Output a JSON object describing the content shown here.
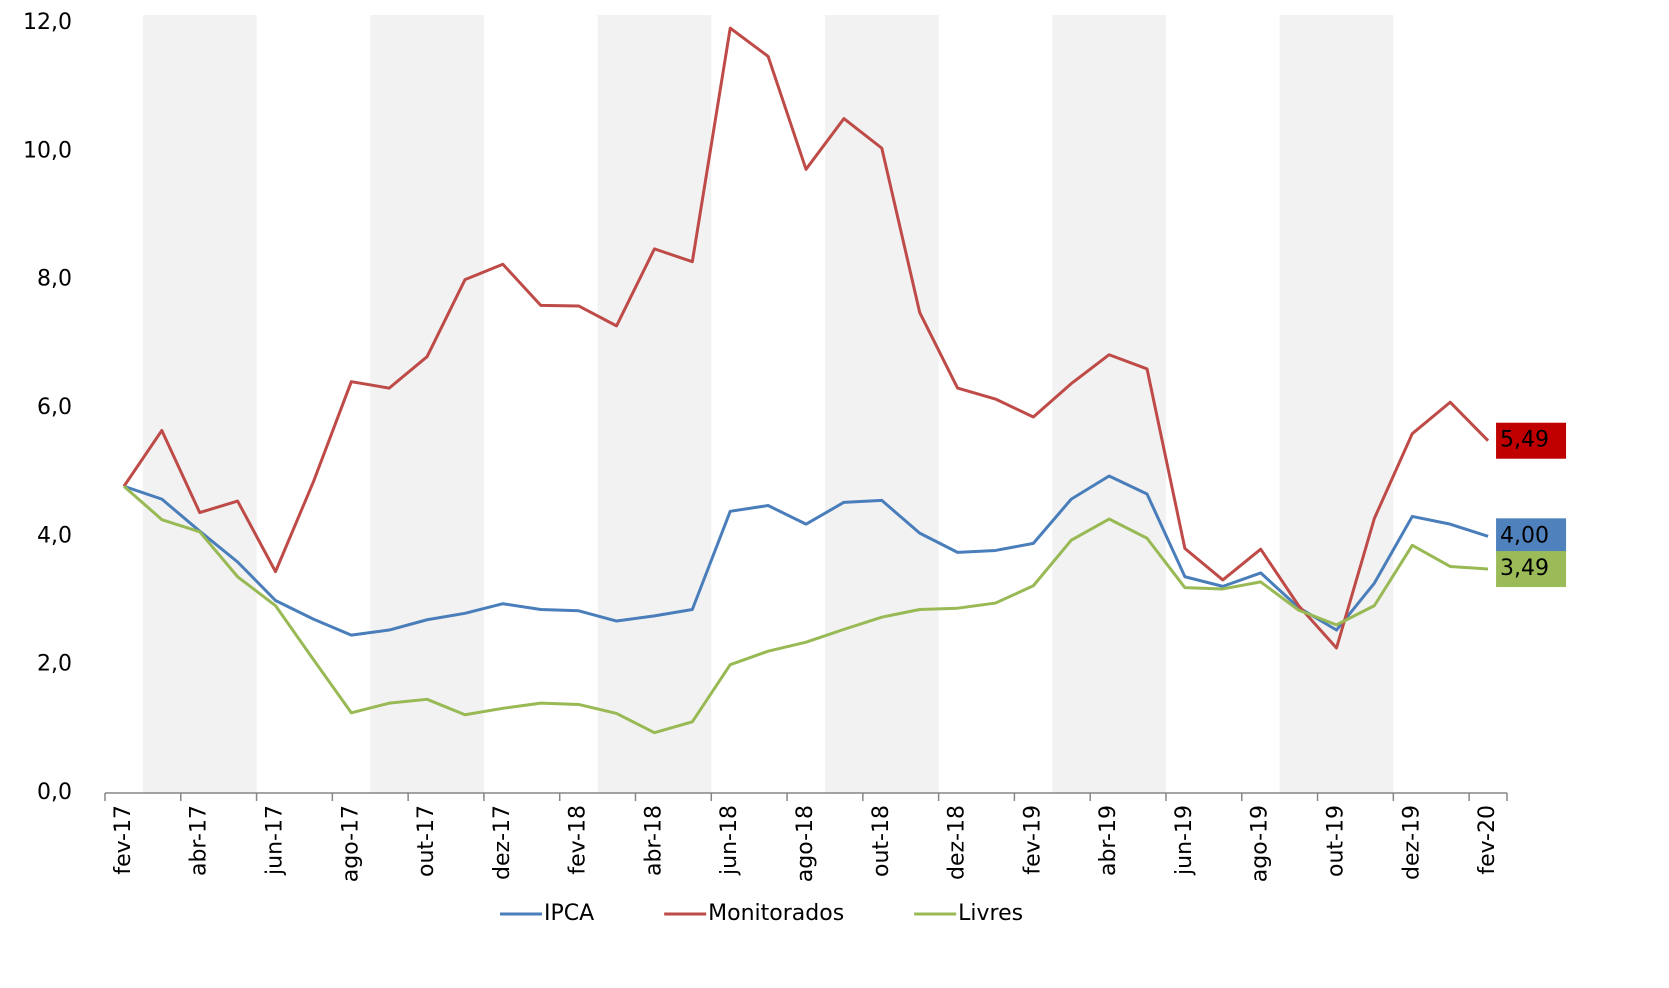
{
  "chart_data": {
    "type": "line",
    "categories": [
      "fev-17",
      null,
      "abr-17",
      null,
      "jun-17",
      null,
      "ago-17",
      null,
      "out-17",
      null,
      "dez-17",
      null,
      "fev-18",
      null,
      "abr-18",
      null,
      "jun-18",
      null,
      "ago-18",
      null,
      "out-18",
      null,
      "dez-18",
      null,
      "fev-19",
      null,
      "abr-19",
      null,
      "jun-19",
      null,
      "ago-19",
      null,
      "out-19",
      null,
      "dez-19",
      null,
      "fev-20"
    ],
    "series": [
      {
        "name": "IPCA",
        "color": "#4a7ebb",
        "label_color": "#4f81bd",
        "values": [
          4.78,
          4.58,
          4.08,
          3.6,
          3.0,
          2.71,
          2.46,
          2.54,
          2.7,
          2.8,
          2.95,
          2.86,
          2.84,
          2.68,
          2.76,
          2.86,
          4.39,
          4.48,
          4.19,
          4.53,
          4.56,
          4.05,
          3.75,
          3.78,
          3.89,
          4.58,
          4.94,
          4.66,
          3.37,
          3.22,
          3.43,
          2.89,
          2.54,
          3.27,
          4.31,
          4.19,
          4.0
        ],
        "value_labels": [
          null,
          null,
          null,
          null,
          null,
          null,
          null,
          null,
          null,
          null,
          null,
          null,
          null,
          null,
          null,
          null,
          null,
          null,
          null,
          null,
          null,
          null,
          null,
          null,
          null,
          null,
          null,
          null,
          null,
          null,
          null,
          null,
          null,
          null,
          null,
          null,
          "4,00"
        ]
      },
      {
        "name": "Monitorados",
        "color": "#be4b48",
        "label_color": "#c00000",
        "values": [
          4.78,
          5.65,
          4.37,
          4.55,
          3.45,
          4.85,
          6.41,
          6.31,
          6.8,
          8.0,
          8.24,
          7.6,
          7.59,
          7.28,
          8.48,
          8.28,
          11.92,
          11.48,
          9.72,
          10.51,
          10.05,
          7.49,
          6.31,
          6.14,
          5.86,
          6.38,
          6.83,
          6.61,
          3.81,
          3.32,
          3.8,
          2.92,
          2.26,
          4.28,
          5.6,
          6.09,
          5.49
        ],
        "value_labels": [
          null,
          null,
          null,
          null,
          null,
          null,
          null,
          null,
          null,
          null,
          null,
          null,
          null,
          null,
          null,
          null,
          null,
          null,
          null,
          null,
          null,
          null,
          null,
          null,
          null,
          null,
          null,
          null,
          null,
          null,
          null,
          null,
          null,
          null,
          null,
          null,
          "5,49"
        ]
      },
      {
        "name": "Livres",
        "color": "#98b954",
        "label_color": "#9bbb59",
        "values": [
          4.78,
          4.26,
          4.07,
          3.37,
          2.92,
          2.08,
          1.25,
          1.4,
          1.46,
          1.22,
          1.32,
          1.4,
          1.38,
          1.24,
          0.94,
          1.11,
          2.0,
          2.21,
          2.35,
          2.55,
          2.74,
          2.86,
          2.88,
          2.96,
          3.23,
          3.94,
          4.27,
          3.97,
          3.2,
          3.18,
          3.29,
          2.85,
          2.62,
          2.92,
          3.86,
          3.53,
          3.49
        ],
        "value_labels": [
          null,
          null,
          null,
          null,
          null,
          null,
          null,
          null,
          null,
          null,
          null,
          null,
          null,
          null,
          null,
          null,
          null,
          null,
          null,
          null,
          null,
          null,
          null,
          null,
          null,
          null,
          null,
          null,
          null,
          null,
          null,
          null,
          null,
          null,
          null,
          null,
          "3,49"
        ]
      }
    ],
    "ylim": [
      0,
      12
    ],
    "yticks": [
      {
        "value": 0,
        "label": "0,0"
      },
      {
        "value": 2,
        "label": "2,0"
      },
      {
        "value": 4,
        "label": "4,0"
      },
      {
        "value": 6,
        "label": "6,0"
      },
      {
        "value": 8,
        "label": "8,0"
      },
      {
        "value": 10,
        "label": "10,0"
      },
      {
        "value": 12,
        "label": "12,0"
      }
    ],
    "grid": false,
    "legend": "bottom"
  }
}
